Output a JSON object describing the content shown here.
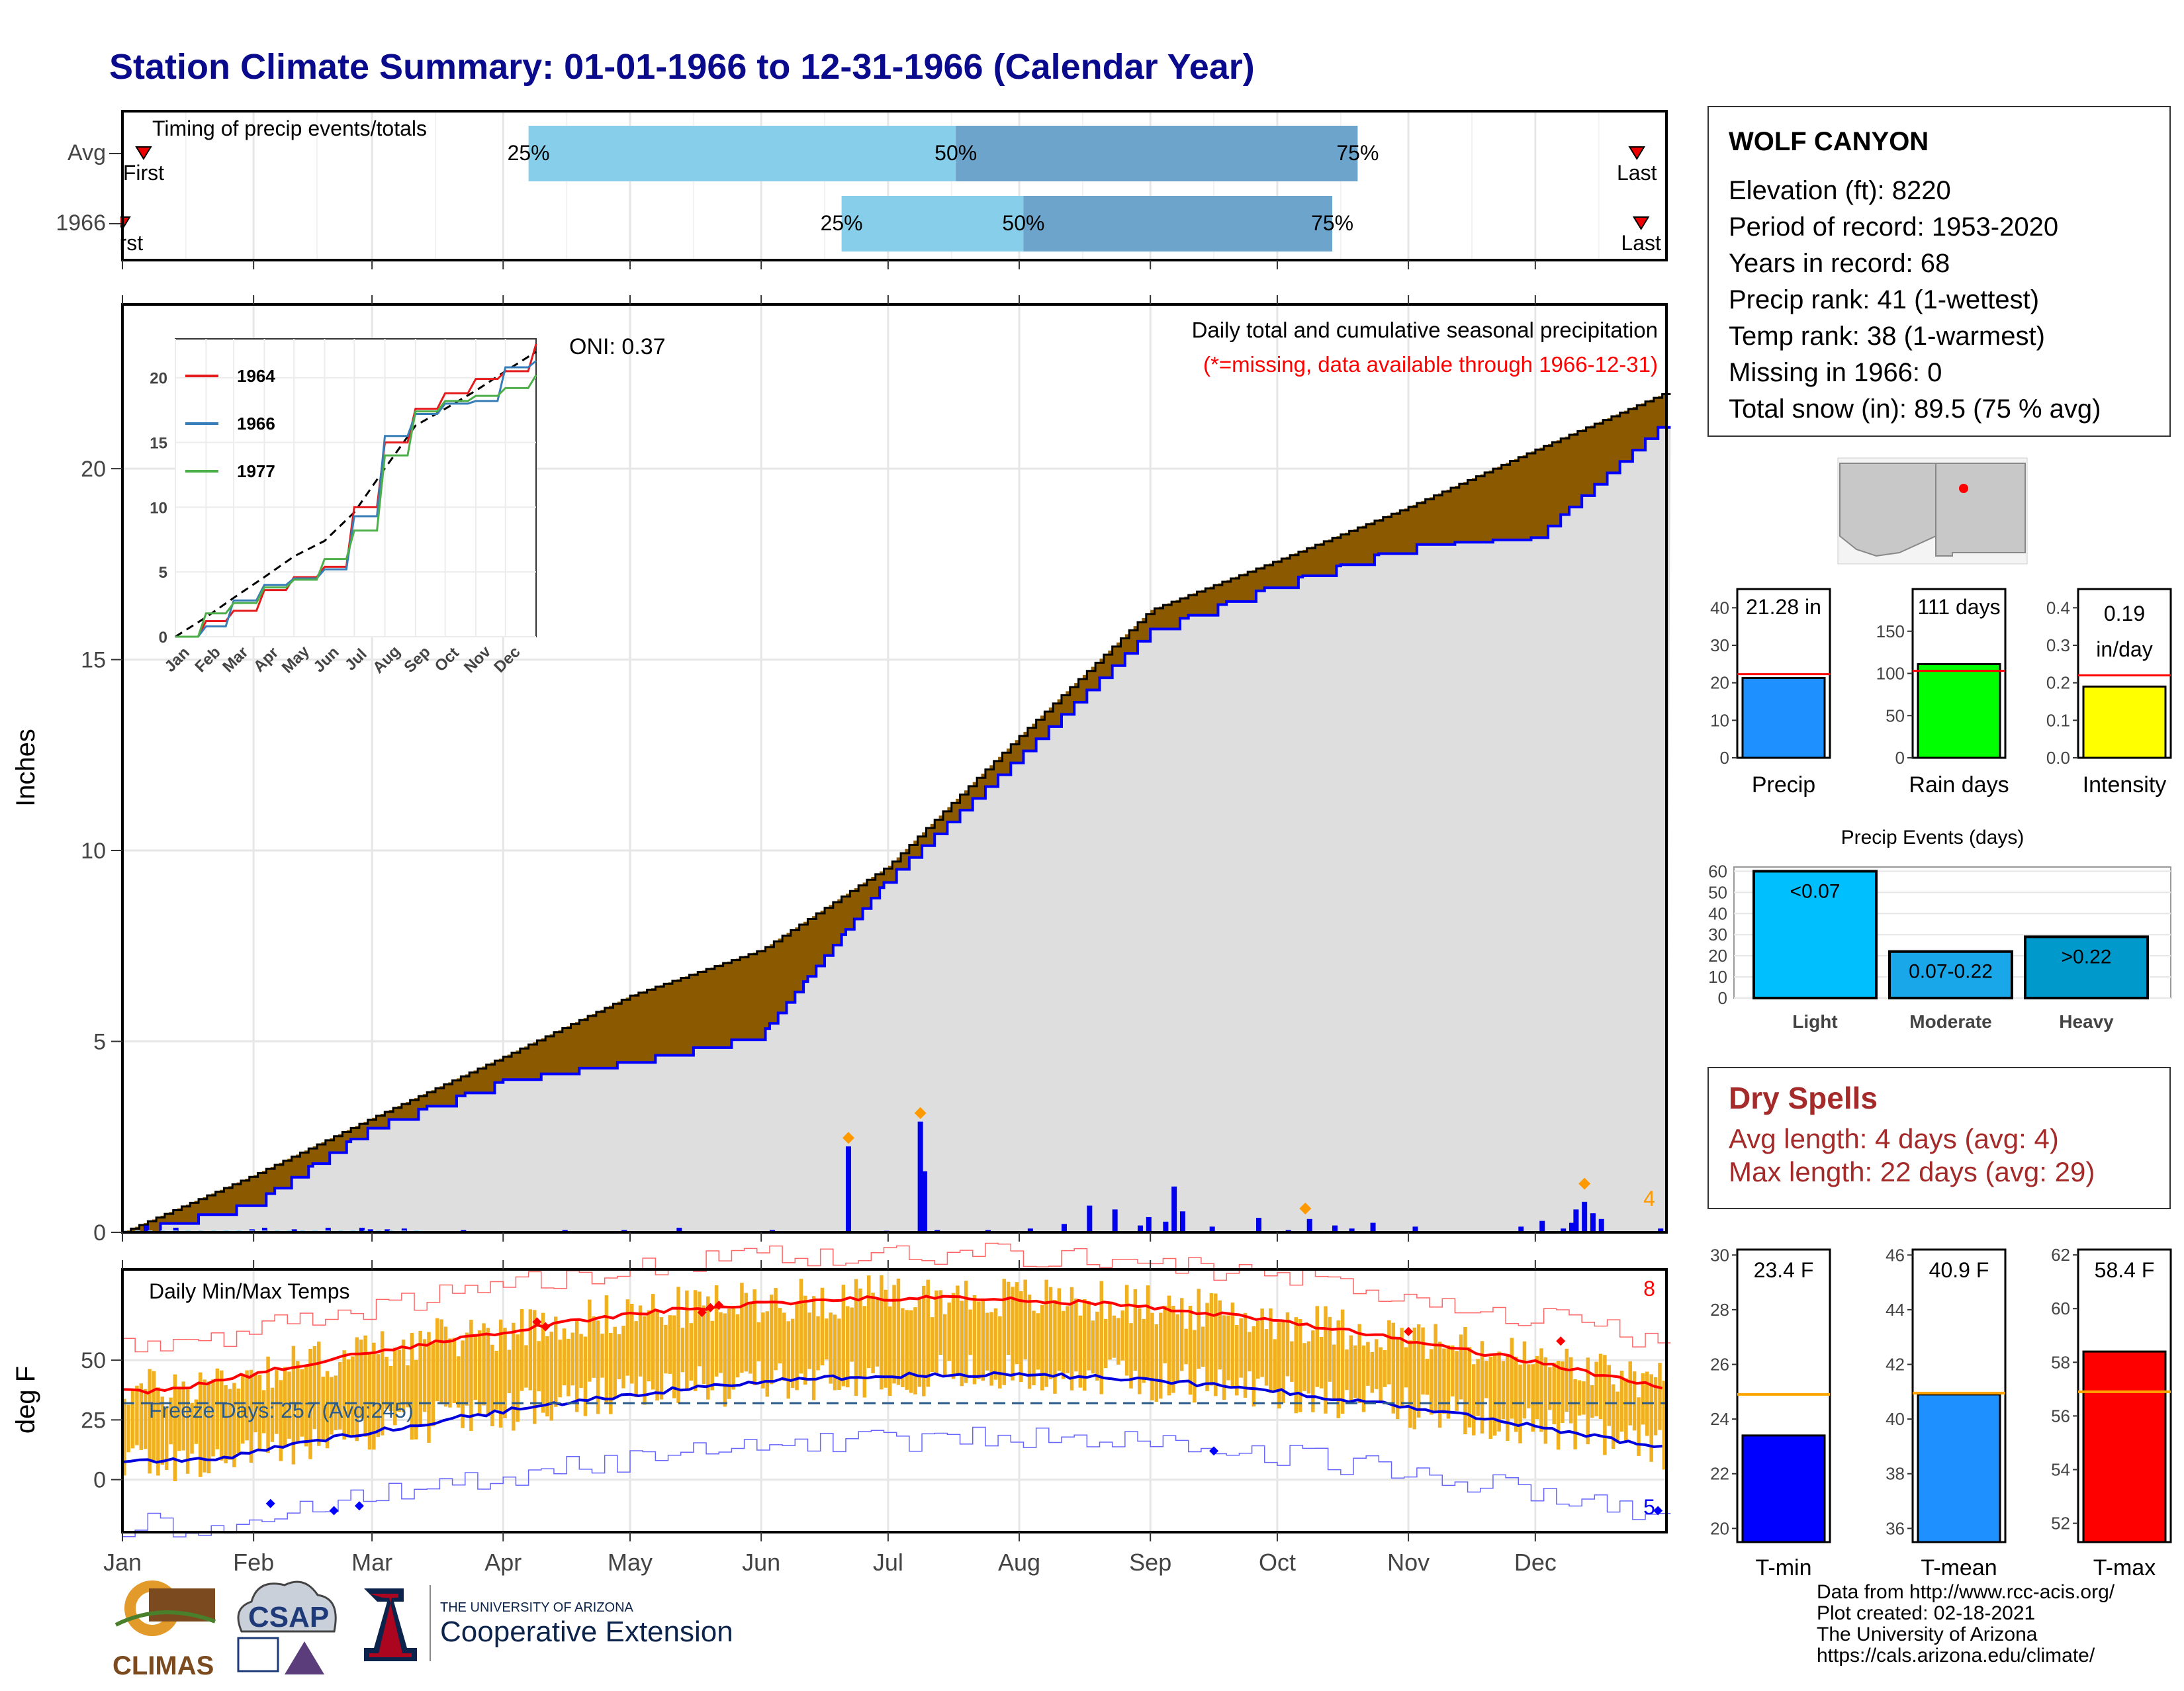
{
  "page_title": "Station Climate Summary: 01-01-1966 to 12-31-1966 (Calendar Year)",
  "timing": {
    "title": "Timing of precip events/totals",
    "rows": [
      {
        "label": "Avg",
        "p25": "25%",
        "p50": "50%",
        "p75": "75%",
        "first": "First",
        "last": "Last",
        "p25_day": 96,
        "p50_day": 197,
        "p75_day": 292,
        "first_day": 5,
        "last_day": 358
      },
      {
        "label": "1966",
        "p25": "25%",
        "p50": "50%",
        "p75": "75%",
        "first": "First",
        "last": "Last",
        "p25_day": 170,
        "p50_day": 213,
        "p75_day": 286,
        "first_day": 0,
        "last_day": 359
      }
    ]
  },
  "main": {
    "ylabel": "Inches",
    "oni": "ONI: 0.37",
    "caption1": "Daily total and cumulative seasonal precipitation",
    "caption2": "(*=missing, data available through 1966-12-31)",
    "extreme_count": "4",
    "yticks": [
      "0",
      "5",
      "10",
      "15",
      "20"
    ],
    "months": [
      "Jan",
      "Feb",
      "Mar",
      "Apr",
      "May",
      "Jun",
      "Jul",
      "Aug",
      "Sep",
      "Oct",
      "Nov",
      "Dec"
    ]
  },
  "inset": {
    "yticks": [
      "0",
      "5",
      "10",
      "15",
      "20"
    ],
    "months": [
      "Jan",
      "Feb",
      "Mar",
      "Apr",
      "May",
      "Jun",
      "Jul",
      "Aug",
      "Sep",
      "Oct",
      "Nov",
      "Dec"
    ],
    "legend": [
      {
        "name": "1964",
        "color": "#e41a1c"
      },
      {
        "name": "1966",
        "color": "#377eb8"
      },
      {
        "name": "1977",
        "color": "#4daf4a"
      }
    ]
  },
  "temps": {
    "title": "Daily Min/Max Temps",
    "ylabel": "deg F",
    "freeze": "Freeze Days: 257 (Avg:245)",
    "max_count": "8",
    "min_count": "5",
    "yticks": [
      "0",
      "25",
      "50"
    ]
  },
  "station": {
    "name": "WOLF CANYON",
    "lines": [
      "Elevation (ft): 8220",
      "Period of record: 1953-2020",
      "Years in record: 68",
      "Precip rank: 41 (1-wettest)",
      "Temp rank: 38 (1-warmest)",
      "Missing in 1966: 0",
      "Total snow (in): 89.5 (75 % avg)"
    ]
  },
  "mini_precip": [
    {
      "label": "Precip",
      "value_text": "21.28 in",
      "value": 21.28,
      "avg": 22.3,
      "ymax": 45,
      "ticks": [
        "0",
        "10",
        "20",
        "30",
        "40"
      ],
      "color": "#1e90ff"
    },
    {
      "label": "Rain days",
      "value_text": "111 days",
      "value": 111,
      "avg": 103,
      "ymax": 200,
      "ticks": [
        "0",
        "50",
        "100",
        "150"
      ],
      "color": "#00ff00"
    },
    {
      "label": "Intensity",
      "value_text": "0.19",
      "value_text2": "in/day",
      "value": 0.19,
      "avg": 0.22,
      "ymax": 0.45,
      "ticks": [
        "0.0",
        "0.1",
        "0.2",
        "0.3",
        "0.4"
      ],
      "color": "#ffff00"
    }
  ],
  "precip_events": {
    "title": "Precip Events (days)",
    "yticks": [
      "0",
      "10",
      "20",
      "30",
      "40",
      "50",
      "60"
    ],
    "bars": [
      {
        "label": "Light",
        "text": "<0.07",
        "value": 60,
        "color": "#00bfff"
      },
      {
        "label": "Moderate",
        "text": "0.07-0.22",
        "value": 22,
        "color": "#1aa7ea"
      },
      {
        "label": "Heavy",
        "text": ">0.22",
        "value": 29,
        "color": "#0099cc"
      }
    ]
  },
  "dry_spells": {
    "title": "Dry Spells",
    "avg_length": "Avg length: 4 days (avg: 4)",
    "max_length": "Max length: 22 days (avg: 29)"
  },
  "mini_temps": [
    {
      "label": "T-min",
      "value_text": "23.4 F",
      "value": 23.4,
      "avg": 24.9,
      "ymin": 19.5,
      "ymax": 30.2,
      "ticks": [
        20,
        22,
        24,
        26,
        28,
        30
      ],
      "color": "#0000ff"
    },
    {
      "label": "T-mean",
      "value_text": "40.9 F",
      "value": 40.9,
      "avg": 40.95,
      "ymin": 35.5,
      "ymax": 46.2,
      "ticks": [
        36,
        38,
        40,
        42,
        44,
        46
      ],
      "color": "#1e90ff"
    },
    {
      "label": "T-max",
      "value_text": "58.4 F",
      "value": 58.4,
      "avg": 56.9,
      "ymin": 51.3,
      "ymax": 62.2,
      "ticks": [
        52,
        54,
        56,
        58,
        60,
        62
      ],
      "color": "#ff0000"
    }
  ],
  "footer": [
    "Data from http://www.rcc-acis.org/",
    "Plot created: 02-18-2021",
    "The University of Arizona",
    "https://cals.arizona.edu/climate/"
  ],
  "logos": {
    "climas": "CLIMAS",
    "csap": "CSAP",
    "ua_small": "THE UNIVERSITY OF ARIZONA",
    "ua_big": "Cooperative Extension"
  },
  "chart_data": [
    {
      "type": "area",
      "title": "Daily total and cumulative seasonal precipitation",
      "ylabel": "Inches",
      "ylim": [
        0,
        24
      ],
      "series": [
        {
          "name": "Average cumulative",
          "x": [
            "Jan 1",
            "Feb 1",
            "Mar 1",
            "Apr 1",
            "May 1",
            "Jun 1",
            "Jul 1",
            "Aug 1",
            "Sep 1",
            "Oct 1",
            "Nov 1",
            "Dec 1",
            "Dec 31"
          ],
          "values": [
            0,
            1.5,
            3.0,
            4.6,
            6.2,
            7.4,
            9.6,
            13.0,
            16.3,
            17.6,
            19.0,
            20.5,
            22.0
          ]
        },
        {
          "name": "1966 cumulative",
          "x": [
            "Jan 1",
            "Feb 1",
            "Mar 1",
            "Apr 1",
            "May 1",
            "Jun 1",
            "Jul 1",
            "Aug 1",
            "Sep 1",
            "Oct 1",
            "Nov 1",
            "Dec 1",
            "Dec 31"
          ],
          "values": [
            0,
            0.8,
            2.8,
            4.0,
            4.5,
            5.2,
            9.3,
            12.5,
            15.8,
            17.0,
            18.0,
            18.2,
            21.28
          ]
        }
      ]
    },
    {
      "type": "line",
      "title": "Daily Min/Max Temps",
      "ylabel": "deg F",
      "ylim": [
        -20,
        85
      ],
      "series": [
        {
          "name": "Avg max",
          "x": [
            "Jan",
            "Feb",
            "Mar",
            "Apr",
            "May",
            "Jun",
            "Jul",
            "Aug",
            "Sep",
            "Oct",
            "Nov",
            "Dec"
          ],
          "values": [
            38,
            40,
            45,
            52,
            60,
            70,
            76,
            74,
            68,
            58,
            46,
            38
          ]
        },
        {
          "name": "Avg min",
          "x": [
            "Jan",
            "Feb",
            "Mar",
            "Apr",
            "May",
            "Jun",
            "Jul",
            "Aug",
            "Sep",
            "Oct",
            "Nov",
            "Dec"
          ],
          "values": [
            10,
            12,
            16,
            22,
            28,
            36,
            43,
            42,
            35,
            25,
            16,
            10
          ]
        }
      ]
    }
  ]
}
